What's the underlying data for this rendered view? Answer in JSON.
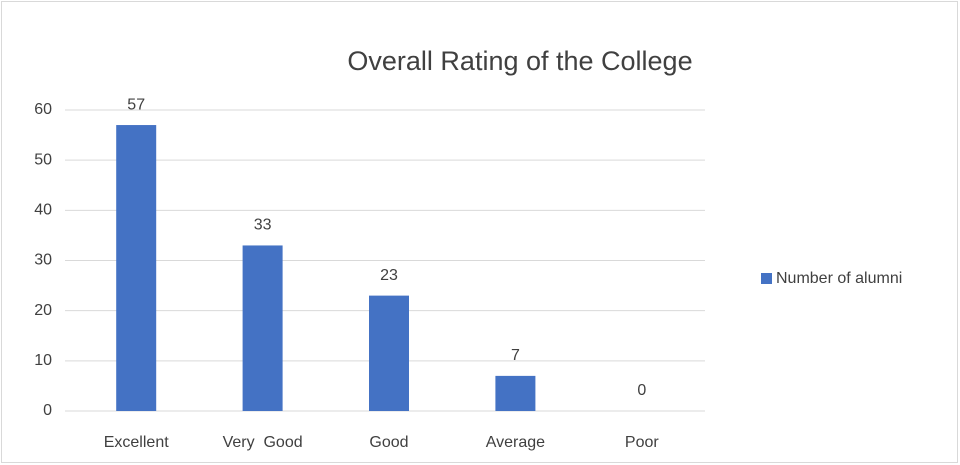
{
  "chart_data": {
    "type": "bar",
    "title": "Overall Rating of the College",
    "categories": [
      "Excellent",
      "Very  Good",
      "Good",
      "Average",
      "Poor"
    ],
    "series": [
      {
        "name": "Number of alumni",
        "color": "#4472c4",
        "values": [
          57,
          33,
          23,
          7,
          0
        ]
      }
    ],
    "ylim": [
      0,
      60
    ],
    "yticks": [
      0,
      10,
      20,
      30,
      40,
      50,
      60
    ],
    "grid": true,
    "legend": "right",
    "data_labels": true
  }
}
